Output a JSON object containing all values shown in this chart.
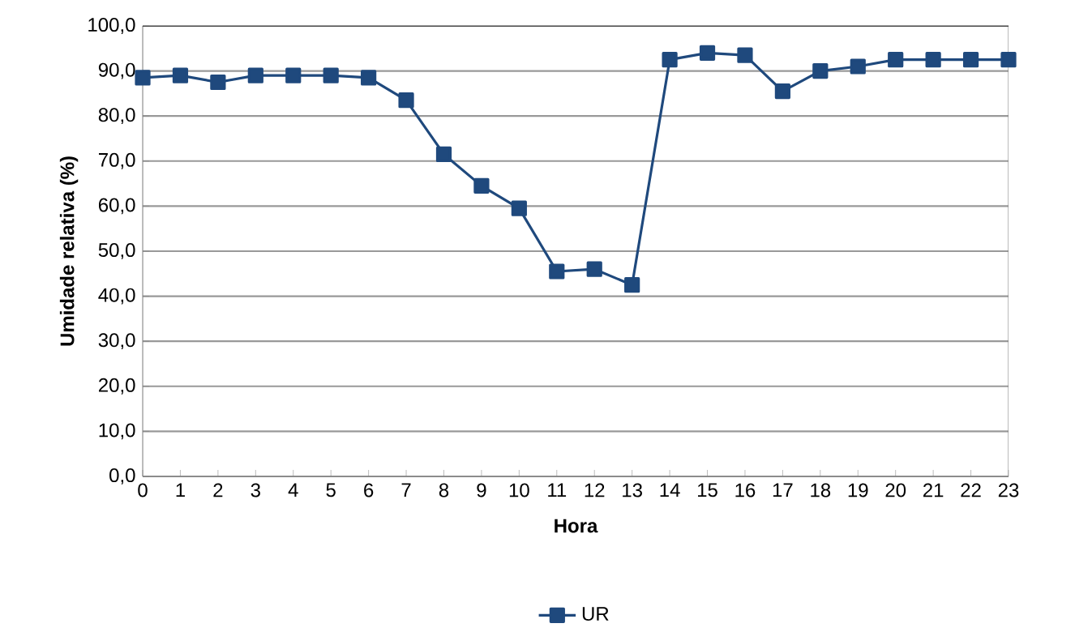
{
  "chart_data": {
    "type": "line",
    "xlabel": "Hora",
    "ylabel": "Umidade relativa (%)",
    "categories": [
      "0",
      "1",
      "2",
      "3",
      "4",
      "5",
      "6",
      "7",
      "8",
      "9",
      "10",
      "11",
      "12",
      "13",
      "14",
      "15",
      "16",
      "17",
      "18",
      "19",
      "20",
      "21",
      "22",
      "23"
    ],
    "series": [
      {
        "name": "UR",
        "color": "#1f497d",
        "values": [
          88.5,
          89.0,
          87.5,
          89.0,
          89.0,
          89.0,
          88.5,
          83.5,
          71.5,
          64.5,
          59.5,
          45.5,
          46.0,
          42.5,
          92.5,
          94.0,
          93.5,
          85.5,
          90.0,
          91.0,
          92.5,
          92.5,
          92.5,
          92.5
        ]
      }
    ],
    "ylim": [
      0,
      100
    ],
    "yticks": [
      {
        "value": 0,
        "label": "0,0"
      },
      {
        "value": 10,
        "label": "10,0"
      },
      {
        "value": 20,
        "label": "20,0"
      },
      {
        "value": 30,
        "label": "30,0"
      },
      {
        "value": 40,
        "label": "40,0"
      },
      {
        "value": 50,
        "label": "50,0"
      },
      {
        "value": 60,
        "label": "60,0"
      },
      {
        "value": 70,
        "label": "70,0"
      },
      {
        "value": 80,
        "label": "80,0"
      },
      {
        "value": 90,
        "label": "90,0"
      },
      {
        "value": 100,
        "label": "100,0"
      }
    ],
    "grid": "y",
    "legend": "bottom",
    "marker": "square",
    "line_style": "solid"
  }
}
